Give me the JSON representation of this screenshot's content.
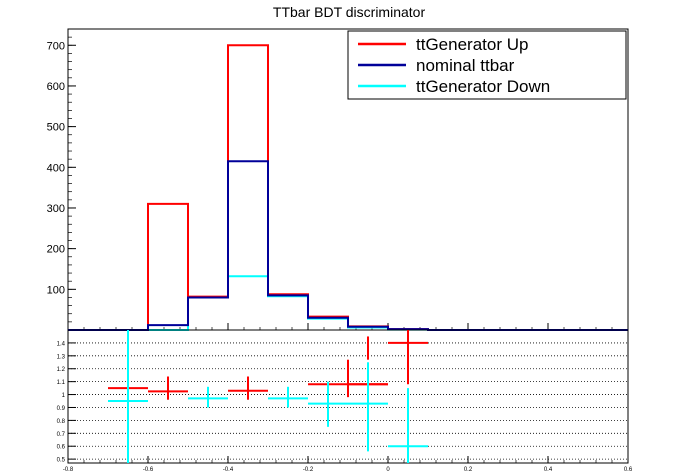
{
  "chart_data": {
    "type": "histogram",
    "title": "TTbar BDT discriminator",
    "top_panel": {
      "xlim": [
        -0.8,
        0.6
      ],
      "ylim": [
        0,
        740
      ],
      "y_ticks": [
        "100",
        "200",
        "300",
        "400",
        "500",
        "600",
        "700"
      ],
      "bin_edges": [
        -0.8,
        -0.7,
        -0.6,
        -0.5,
        -0.4,
        -0.3,
        -0.2,
        -0.1,
        0.0,
        0.1,
        0.2,
        0.3,
        0.4,
        0.5,
        0.6
      ],
      "legend_position": "top-right",
      "series": [
        {
          "name": "ttGenerator Up",
          "color": "#ff0000",
          "values": [
            0,
            0,
            310,
            82,
            700,
            88,
            33,
            9,
            2,
            0,
            0,
            0,
            0,
            0
          ]
        },
        {
          "name": "nominal ttbar",
          "color": "#000099",
          "values": [
            0,
            0,
            12,
            80,
            415,
            85,
            30,
            8,
            2,
            0,
            0,
            0,
            0,
            0
          ]
        },
        {
          "name": "ttGenerator Down",
          "color": "#00ffff",
          "values": [
            0,
            0,
            0,
            80,
            132,
            83,
            28,
            6,
            1,
            0,
            0,
            0,
            0,
            0
          ]
        }
      ]
    },
    "ratio_panel": {
      "xlim": [
        -0.8,
        0.6
      ],
      "ylim": [
        0.47,
        1.5
      ],
      "x_ticks": [
        "-0.8",
        "-0.6",
        "-0.4",
        "-0.2",
        "0",
        "0.2",
        "0.4",
        "0.6"
      ],
      "y_ticks": [
        "0.5",
        "0.6",
        "0.7",
        "0.8",
        "0.9",
        "1",
        "1.1",
        "1.2",
        "1.3",
        "1.4"
      ],
      "grid": "horizontal dotted",
      "series": [
        {
          "name": "ttGenerator Up",
          "color": "#ff0000",
          "points": [
            {
              "x0": -0.7,
              "x1": -0.6,
              "y": 1.05,
              "ylo": 1.05,
              "yhi": 1.05
            },
            {
              "x0": -0.6,
              "x1": -0.5,
              "y": 1.025,
              "ylo": 0.96,
              "yhi": 1.14
            },
            {
              "x0": -0.4,
              "x1": -0.3,
              "y": 1.03,
              "ylo": 0.96,
              "yhi": 1.14
            },
            {
              "x0": -0.2,
              "x1": 0.0,
              "y": 1.08,
              "ylo": 0.98,
              "yhi": 1.27
            },
            {
              "x0": -0.1,
              "x1": 0.0,
              "y": 1.08,
              "ylo": 1.27,
              "yhi": 1.45
            },
            {
              "x0": 0.0,
              "x1": 0.1,
              "y": 1.4,
              "ylo": 1.08,
              "yhi": 1.5
            }
          ]
        },
        {
          "name": "ttGenerator Down",
          "color": "#00ffff",
          "points": [
            {
              "x0": -0.7,
              "x1": -0.6,
              "y": 0.95,
              "ylo": 0.47,
              "yhi": 1.5
            },
            {
              "x0": -0.5,
              "x1": -0.4,
              "y": 0.97,
              "ylo": 0.9,
              "yhi": 1.06
            },
            {
              "x0": -0.3,
              "x1": -0.2,
              "y": 0.97,
              "ylo": 0.9,
              "yhi": 1.06
            },
            {
              "x0": -0.2,
              "x1": -0.1,
              "y": 0.93,
              "ylo": 0.75,
              "yhi": 1.1
            },
            {
              "x0": -0.1,
              "x1": 0.0,
              "y": 0.93,
              "ylo": 0.56,
              "yhi": 1.25
            },
            {
              "x0": 0.0,
              "x1": 0.1,
              "y": 0.6,
              "ylo": 0.47,
              "yhi": 1.05
            }
          ]
        }
      ]
    }
  }
}
